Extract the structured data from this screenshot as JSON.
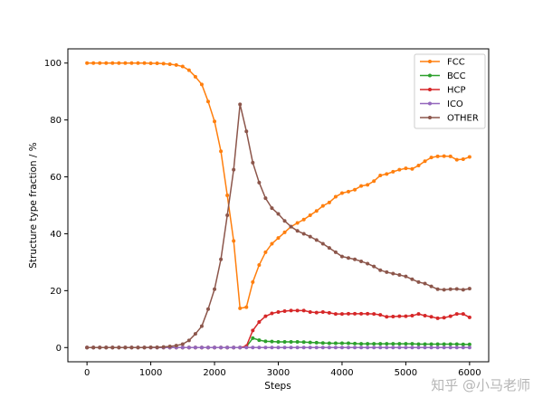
{
  "chart_data": {
    "type": "line",
    "title": "",
    "xlabel": "Steps",
    "ylabel": "Structure type fraction / %",
    "xlim": [
      -300,
      6300
    ],
    "ylim": [
      -5,
      105
    ],
    "xticks": [
      0,
      1000,
      2000,
      3000,
      4000,
      5000,
      6000
    ],
    "yticks": [
      0,
      20,
      40,
      60,
      80,
      100
    ],
    "grid": false,
    "legend_position": "top-right",
    "x": [
      0,
      100,
      200,
      300,
      400,
      500,
      600,
      700,
      800,
      900,
      1000,
      1100,
      1200,
      1300,
      1400,
      1500,
      1600,
      1700,
      1800,
      1900,
      2000,
      2100,
      2200,
      2300,
      2400,
      2500,
      2600,
      2700,
      2800,
      2900,
      3000,
      3100,
      3200,
      3300,
      3400,
      3500,
      3600,
      3700,
      3800,
      3900,
      4000,
      4100,
      4200,
      4300,
      4400,
      4500,
      4600,
      4700,
      4800,
      4900,
      5000,
      5100,
      5200,
      5300,
      5400,
      5500,
      5600,
      5700,
      5800,
      5900,
      6000
    ],
    "series": [
      {
        "name": "FCC",
        "color": "#ff7f0e",
        "values": [
          100,
          100,
          100,
          100,
          100,
          100,
          100,
          100,
          100,
          100,
          99.9,
          99.9,
          99.8,
          99.6,
          99.3,
          98.8,
          97.5,
          95.2,
          92.5,
          86.5,
          79.5,
          69.0,
          53.5,
          37.5,
          13.8,
          14.2,
          23.0,
          29.0,
          33.5,
          36.5,
          38.5,
          40.5,
          42.5,
          43.8,
          45.0,
          46.5,
          48.0,
          49.8,
          51.0,
          53.0,
          54.3,
          54.8,
          55.5,
          56.8,
          57.2,
          58.5,
          60.5,
          61.0,
          61.8,
          62.5,
          63.0,
          62.8,
          64.0,
          65.5,
          66.8,
          67.2,
          67.3,
          67.2,
          66.0,
          66.2,
          67.0
        ]
      },
      {
        "name": "BCC",
        "color": "#2ca02c",
        "values": [
          0,
          0,
          0,
          0,
          0,
          0,
          0,
          0,
          0,
          0,
          0,
          0,
          0,
          0,
          0,
          0,
          0,
          0,
          0,
          0,
          0,
          0,
          0,
          0,
          0,
          0.3,
          3.3,
          2.6,
          2.2,
          2.1,
          2.0,
          2.0,
          2.0,
          2.0,
          1.9,
          1.8,
          1.7,
          1.6,
          1.5,
          1.5,
          1.5,
          1.5,
          1.4,
          1.3,
          1.3,
          1.3,
          1.3,
          1.3,
          1.3,
          1.3,
          1.3,
          1.3,
          1.2,
          1.2,
          1.2,
          1.2,
          1.2,
          1.2,
          1.2,
          1.1,
          1.1
        ]
      },
      {
        "name": "HCP",
        "color": "#d62728",
        "values": [
          0,
          0,
          0,
          0,
          0,
          0,
          0,
          0,
          0,
          0,
          0,
          0,
          0,
          0,
          0,
          0,
          0,
          0,
          0,
          0,
          0,
          0,
          0,
          0,
          0,
          0.5,
          6.0,
          9.0,
          11.0,
          12.0,
          12.5,
          12.8,
          13.0,
          13.0,
          13.0,
          12.5,
          12.3,
          12.5,
          12.2,
          11.8,
          11.8,
          11.9,
          11.9,
          11.9,
          11.9,
          11.8,
          11.5,
          10.8,
          10.9,
          11.0,
          11.0,
          11.2,
          11.8,
          11.2,
          10.8,
          10.3,
          10.5,
          11.0,
          11.8,
          11.8,
          10.6
        ]
      },
      {
        "name": "ICO",
        "color": "#9467bd",
        "values": [
          0,
          0,
          0,
          0,
          0,
          0,
          0,
          0,
          0,
          0,
          0,
          0,
          0,
          0,
          0,
          0,
          0,
          0,
          0,
          0,
          0,
          0,
          0,
          0,
          0,
          0,
          0,
          0,
          0,
          0,
          0,
          0,
          0,
          0,
          0,
          0,
          0,
          0,
          0,
          0,
          0,
          0,
          0,
          0,
          0,
          0,
          0,
          0,
          0,
          0,
          0,
          0,
          0,
          0,
          0,
          0,
          0,
          0,
          0,
          0,
          0
        ]
      },
      {
        "name": "OTHER",
        "color": "#8c564b",
        "values": [
          0,
          0,
          0,
          0,
          0,
          0,
          0,
          0,
          0,
          0,
          0.1,
          0.1,
          0.2,
          0.4,
          0.7,
          1.2,
          2.5,
          4.8,
          7.5,
          13.5,
          20.5,
          31.0,
          46.5,
          62.5,
          85.5,
          76.0,
          65.0,
          58.0,
          52.5,
          49.0,
          47.0,
          44.5,
          42.5,
          41.0,
          40.0,
          39.0,
          37.8,
          36.5,
          35.0,
          33.5,
          32.0,
          31.5,
          31.0,
          30.3,
          29.5,
          28.5,
          27.2,
          26.5,
          26.0,
          25.5,
          25.0,
          24.0,
          23.0,
          22.5,
          21.5,
          20.5,
          20.3,
          20.5,
          20.6,
          20.3,
          20.7
        ]
      }
    ]
  },
  "watermark": "知乎 @小马老师"
}
